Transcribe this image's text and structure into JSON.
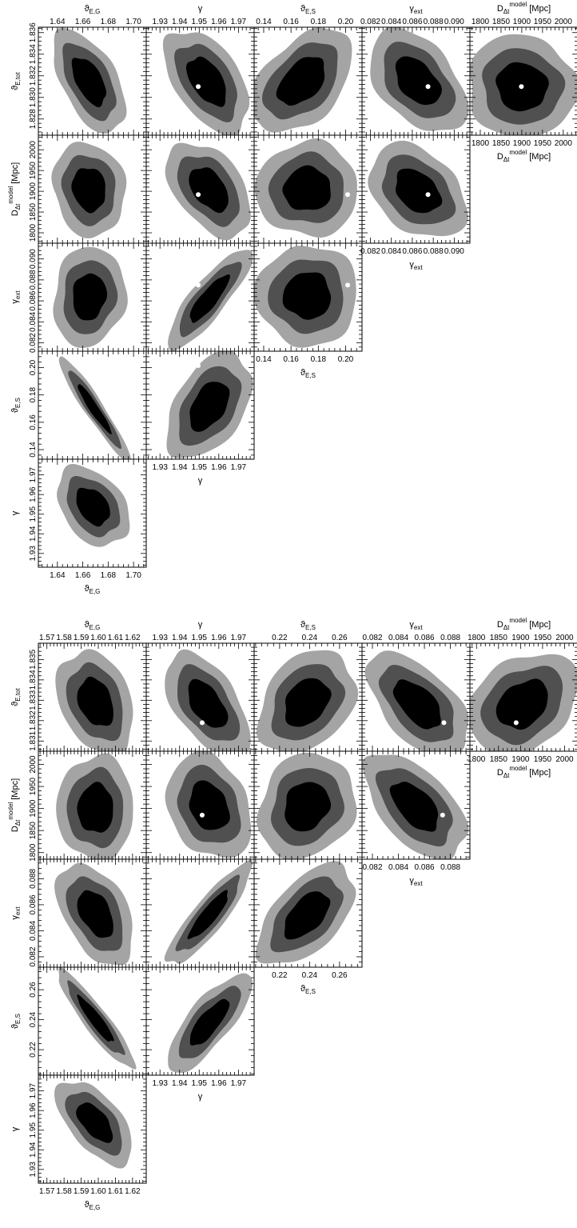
{
  "colors": {
    "level_68": "#000000",
    "level_95": "#505050",
    "level_99": "#a4a4a4",
    "truth_marker": "#ffffff",
    "background": "#ffffff"
  },
  "chart_data": [
    {
      "type": "corner-contour",
      "parameters": [
        {
          "key": "thetaEG",
          "label": "ϑ",
          "sub": "E,G",
          "sup": "",
          "suffix": "",
          "range": [
            1.625,
            1.71
          ],
          "ticks": [
            1.64,
            1.66,
            1.68,
            1.7
          ],
          "tick_labels": [
            "1.64",
            "1.66",
            "1.68",
            "1.70"
          ]
        },
        {
          "key": "gamma",
          "label": "γ",
          "sub": "",
          "sup": "",
          "suffix": "",
          "range": [
            1.923,
            1.978
          ],
          "ticks": [
            1.93,
            1.94,
            1.95,
            1.96,
            1.97
          ],
          "tick_labels": [
            "1.93",
            "1.94",
            "1.95",
            "1.96",
            "1.97"
          ]
        },
        {
          "key": "thetaES",
          "label": "ϑ",
          "sub": "E,S",
          "sup": "",
          "suffix": "",
          "range": [
            0.133,
            0.212
          ],
          "ticks": [
            0.14,
            0.16,
            0.18,
            0.2
          ],
          "tick_labels": [
            "0.14",
            "0.16",
            "0.18",
            "0.20"
          ]
        },
        {
          "key": "gext",
          "label": "γ",
          "sub": "ext",
          "sup": "",
          "suffix": "",
          "range": [
            0.0812,
            0.0915
          ],
          "ticks": [
            0.082,
            0.084,
            0.086,
            0.088,
            0.09
          ],
          "tick_labels": [
            "0.082",
            "0.084",
            "0.086",
            "0.088",
            "0.090"
          ]
        },
        {
          "key": "Ddt",
          "label": "D",
          "sub": "Δt",
          "sup": "model",
          "suffix": " [Mpc]",
          "range": [
            1775,
            2035
          ],
          "ticks": [
            1800,
            1850,
            1900,
            1950,
            2000
          ],
          "tick_labels": [
            "1800",
            "1850",
            "1900",
            "1950",
            "2000"
          ]
        },
        {
          "key": "thetaEtot",
          "label": "ϑ",
          "sub": "E,tot",
          "sup": "",
          "suffix": "",
          "range": [
            1.8265,
            1.8365
          ],
          "ticks": [
            1.828,
            1.83,
            1.832,
            1.834,
            1.836
          ],
          "tick_labels": [
            "1.828",
            "1.830",
            "1.832",
            "1.834",
            "1.836"
          ]
        }
      ],
      "panels": [
        {
          "x": "thetaEG",
          "y": "thetaEtot",
          "center": [
            1.665,
            1.8315
          ],
          "sigma": [
            0.0095,
            0.0016
          ],
          "rho": -0.55,
          "truth": [
            1.637,
            1.831
          ]
        },
        {
          "x": "gamma",
          "y": "thetaEtot",
          "center": [
            1.954,
            1.8315
          ],
          "sigma": [
            0.0072,
            0.0016
          ],
          "rho": -0.5,
          "truth": [
            1.9495,
            1.831
          ]
        },
        {
          "x": "thetaES",
          "y": "thetaEtot",
          "center": [
            0.168,
            1.8315
          ],
          "sigma": [
            0.0125,
            0.0016
          ],
          "rho": 0.45,
          "truth": [
            0.2015,
            1.831
          ]
        },
        {
          "x": "gext",
          "y": "thetaEtot",
          "center": [
            0.0865,
            1.8315
          ],
          "sigma": [
            0.00155,
            0.0016
          ],
          "rho": -0.45,
          "truth": [
            0.0875,
            1.831
          ]
        },
        {
          "x": "Ddt",
          "y": "thetaEtot",
          "center": [
            1900,
            1.831
          ],
          "sigma": [
            44,
            0.0016
          ],
          "rho": -0.05,
          "truth": [
            1899,
            1.831
          ]
        },
        {
          "x": "thetaEG",
          "y": "Ddt",
          "center": [
            1.665,
            1905
          ],
          "sigma": [
            0.0095,
            38
          ],
          "rho": -0.1,
          "truth": [
            1.637,
            1892
          ]
        },
        {
          "x": "gamma",
          "y": "Ddt",
          "center": [
            1.955,
            1905
          ],
          "sigma": [
            0.0072,
            38
          ],
          "rho": -0.45,
          "truth": [
            1.9495,
            1892
          ]
        },
        {
          "x": "thetaES",
          "y": "Ddt",
          "center": [
            0.172,
            1905
          ],
          "sigma": [
            0.0125,
            38
          ],
          "rho": 0.0,
          "truth": [
            0.2015,
            1892
          ]
        },
        {
          "x": "gext",
          "y": "Ddt",
          "center": [
            0.0865,
            1900
          ],
          "sigma": [
            0.00155,
            38
          ],
          "rho": -0.35,
          "truth": [
            0.0875,
            1892
          ]
        },
        {
          "x": "thetaEG",
          "y": "gext",
          "center": [
            1.665,
            0.0864
          ],
          "sigma": [
            0.0095,
            0.0016
          ],
          "rho": 0.1,
          "truth": [
            1.637,
            0.0875
          ]
        },
        {
          "x": "gamma",
          "y": "gext",
          "center": [
            1.955,
            0.0862
          ],
          "sigma": [
            0.0072,
            0.0016
          ],
          "rho": 0.85,
          "truth": [
            1.9495,
            0.0875
          ]
        },
        {
          "x": "thetaES",
          "y": "gext",
          "center": [
            0.172,
            0.0865
          ],
          "sigma": [
            0.0125,
            0.0016
          ],
          "rho": 0.0,
          "truth": [
            0.2015,
            0.0875
          ]
        },
        {
          "x": "thetaEG",
          "y": "thetaES",
          "center": [
            1.669,
            0.17
          ],
          "sigma": [
            0.0095,
            0.013
          ],
          "rho": -0.95,
          "truth": [
            1.637,
            0.2015
          ]
        },
        {
          "x": "gamma",
          "y": "thetaES",
          "center": [
            1.955,
            0.172
          ],
          "sigma": [
            0.0072,
            0.013
          ],
          "rho": 0.45,
          "truth": [
            1.9495,
            0.2015
          ]
        },
        {
          "x": "thetaEG",
          "y": "gamma",
          "center": [
            1.668,
            1.954
          ],
          "sigma": [
            0.0095,
            0.0068
          ],
          "rho": -0.35,
          "truth": [
            1.637,
            1.9495
          ]
        }
      ]
    },
    {
      "type": "corner-contour",
      "parameters": [
        {
          "key": "thetaEG",
          "label": "ϑ",
          "sub": "E,G",
          "sup": "",
          "suffix": "",
          "range": [
            1.565,
            1.628
          ],
          "ticks": [
            1.57,
            1.58,
            1.59,
            1.6,
            1.61,
            1.62
          ],
          "tick_labels": [
            "1.57",
            "1.58",
            "1.59",
            "1.60",
            "1.61",
            "1.62"
          ]
        },
        {
          "key": "gamma",
          "label": "γ",
          "sub": "",
          "sup": "",
          "suffix": "",
          "range": [
            1.923,
            1.978
          ],
          "ticks": [
            1.93,
            1.94,
            1.95,
            1.96,
            1.97
          ],
          "tick_labels": [
            "1.93",
            "1.94",
            "1.95",
            "1.96",
            "1.97"
          ]
        },
        {
          "key": "thetaES",
          "label": "ϑ",
          "sub": "E,S",
          "sup": "",
          "suffix": "",
          "range": [
            0.203,
            0.275
          ],
          "ticks": [
            0.22,
            0.24,
            0.26
          ],
          "tick_labels": [
            "0.22",
            "0.24",
            "0.26"
          ]
        },
        {
          "key": "gext",
          "label": "γ",
          "sub": "ext",
          "sup": "",
          "suffix": "",
          "range": [
            0.0812,
            0.0895
          ],
          "ticks": [
            0.082,
            0.084,
            0.086,
            0.088
          ],
          "tick_labels": [
            "0.082",
            "0.084",
            "0.086",
            "0.088"
          ]
        },
        {
          "key": "Ddt",
          "label": "D",
          "sub": "Δt",
          "sup": "model",
          "suffix": " [Mpc]",
          "range": [
            1785,
            2030
          ],
          "ticks": [
            1800,
            1850,
            1900,
            1950,
            2000
          ],
          "tick_labels": [
            "1800",
            "1850",
            "1900",
            "1950",
            "2000"
          ]
        },
        {
          "key": "thetaEtot",
          "label": "ϑ",
          "sub": "E,tot",
          "sup": "",
          "suffix": "",
          "range": [
            1.8305,
            1.8358
          ],
          "ticks": [
            1.831,
            1.832,
            1.833,
            1.834,
            1.835
          ],
          "tick_labels": [
            "1.831",
            "1.832",
            "1.833",
            "1.834",
            "1.835"
          ]
        }
      ],
      "panels": [
        {
          "x": "thetaEG",
          "y": "thetaEtot",
          "center": [
            1.5985,
            1.8329
          ],
          "sigma": [
            0.0075,
            0.00085
          ],
          "rho": -0.3,
          "truth": null
        },
        {
          "x": "gamma",
          "y": "thetaEtot",
          "center": [
            1.954,
            1.8328
          ],
          "sigma": [
            0.0072,
            0.00085
          ],
          "rho": -0.55,
          "truth": [
            1.9515,
            1.8319
          ]
        },
        {
          "x": "thetaES",
          "y": "thetaEtot",
          "center": [
            0.238,
            1.8329
          ],
          "sigma": [
            0.0108,
            0.00085
          ],
          "rho": 0.3,
          "truth": null
        },
        {
          "x": "gext",
          "y": "thetaEtot",
          "center": [
            0.0855,
            1.8328
          ],
          "sigma": [
            0.0013,
            0.00085
          ],
          "rho": -0.55,
          "truth": [
            0.0875,
            1.8319
          ]
        },
        {
          "x": "Ddt",
          "y": "thetaEtot",
          "center": [
            1905,
            1.8328
          ],
          "sigma": [
            42,
            0.00085
          ],
          "rho": 0.3,
          "truth": [
            1890,
            1.8319
          ]
        },
        {
          "x": "thetaEG",
          "y": "Ddt",
          "center": [
            1.5985,
            1900
          ],
          "sigma": [
            0.0075,
            40
          ],
          "rho": 0.0,
          "truth": null
        },
        {
          "x": "gamma",
          "y": "Ddt",
          "center": [
            1.955,
            1905
          ],
          "sigma": [
            0.0072,
            40
          ],
          "rho": -0.25,
          "truth": [
            1.9515,
            1885
          ]
        },
        {
          "x": "thetaES",
          "y": "Ddt",
          "center": [
            0.238,
            1905
          ],
          "sigma": [
            0.0108,
            40
          ],
          "rho": 0.15,
          "truth": null
        },
        {
          "x": "gext",
          "y": "Ddt",
          "center": [
            0.0853,
            1905
          ],
          "sigma": [
            0.0013,
            40
          ],
          "rho": -0.55,
          "truth": [
            0.0874,
            1885
          ]
        },
        {
          "x": "thetaEG",
          "y": "gext",
          "center": [
            1.5985,
            0.0853
          ],
          "sigma": [
            0.0075,
            0.0013
          ],
          "rho": -0.45,
          "truth": null
        },
        {
          "x": "gamma",
          "y": "gext",
          "center": [
            1.955,
            0.0852
          ],
          "sigma": [
            0.0072,
            0.0013
          ],
          "rho": 0.88,
          "truth": [
            1.9515,
            0.0873
          ]
        },
        {
          "x": "thetaES",
          "y": "gext",
          "center": [
            0.238,
            0.0852
          ],
          "sigma": [
            0.0108,
            0.0013
          ],
          "rho": 0.55,
          "truth": null
        },
        {
          "x": "thetaEG",
          "y": "thetaES",
          "center": [
            1.5985,
            0.24
          ],
          "sigma": [
            0.0075,
            0.011
          ],
          "rho": -0.92,
          "truth": null
        },
        {
          "x": "gamma",
          "y": "thetaES",
          "center": [
            1.955,
            0.238
          ],
          "sigma": [
            0.0072,
            0.011
          ],
          "rho": 0.78,
          "truth": null
        },
        {
          "x": "thetaEG",
          "y": "gamma",
          "center": [
            1.598,
            1.954
          ],
          "sigma": [
            0.0075,
            0.0072
          ],
          "rho": -0.6,
          "truth": null
        }
      ]
    }
  ]
}
